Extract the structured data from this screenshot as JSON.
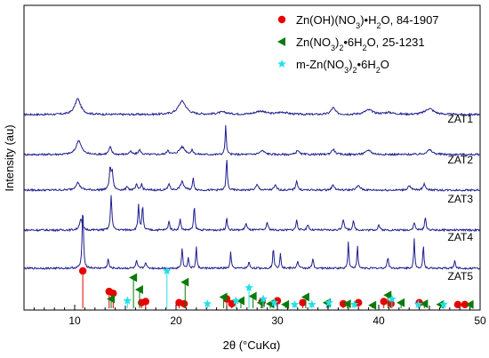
{
  "chart_data": {
    "type": "line",
    "xlabel": "2θ (°CuKα)",
    "ylabel": "Intensity (au)",
    "xlim": [
      5,
      50
    ],
    "xticks": [
      10,
      20,
      30,
      40,
      50
    ],
    "legend_position": "top-right",
    "line_color": "#1f1f8f",
    "series": [
      {
        "name": "ZAT1",
        "baseline": 0.0,
        "peaks": [
          [
            10.3,
            0.42,
            0.35
          ],
          [
            20.6,
            0.36,
            0.45
          ],
          [
            24.6,
            0.06,
            0.6
          ],
          [
            28.3,
            0.09,
            0.6
          ],
          [
            30.5,
            0.06,
            0.6
          ],
          [
            35.5,
            0.18,
            0.25
          ],
          [
            39.0,
            0.12,
            0.5
          ],
          [
            45.0,
            0.16,
            0.5
          ],
          [
            41.0,
            0.05,
            0.6
          ]
        ]
      },
      {
        "name": "ZAT2",
        "baseline": 0.0,
        "peaks": [
          [
            10.4,
            0.38,
            0.3
          ],
          [
            13.5,
            0.2,
            0.15
          ],
          [
            15.5,
            0.08,
            0.15
          ],
          [
            16.4,
            0.12,
            0.15
          ],
          [
            19.2,
            0.12,
            0.12
          ],
          [
            20.6,
            0.2,
            0.35
          ],
          [
            21.6,
            0.1,
            0.12
          ],
          [
            24.9,
            0.78,
            0.07
          ],
          [
            28.5,
            0.1,
            0.3
          ],
          [
            32.0,
            0.12,
            0.15
          ],
          [
            35.5,
            0.14,
            0.2
          ],
          [
            39.0,
            0.12,
            0.3
          ],
          [
            45.0,
            0.12,
            0.35
          ]
        ]
      },
      {
        "name": "ZAT3",
        "baseline": 0.0,
        "peaks": [
          [
            10.3,
            0.2,
            0.25
          ],
          [
            13.5,
            0.55,
            0.1
          ],
          [
            13.7,
            0.45,
            0.1
          ],
          [
            15.2,
            0.1,
            0.1
          ],
          [
            16.1,
            0.14,
            0.1
          ],
          [
            16.6,
            0.16,
            0.1
          ],
          [
            19.3,
            0.18,
            0.1
          ],
          [
            20.6,
            0.22,
            0.2
          ],
          [
            21.7,
            0.32,
            0.08
          ],
          [
            25.0,
            0.85,
            0.07
          ],
          [
            28.0,
            0.14,
            0.15
          ],
          [
            29.8,
            0.12,
            0.15
          ],
          [
            31.9,
            0.26,
            0.1
          ],
          [
            35.5,
            0.14,
            0.15
          ],
          [
            38.0,
            0.12,
            0.2
          ],
          [
            43.0,
            0.12,
            0.15
          ],
          [
            44.5,
            0.16,
            0.15
          ]
        ]
      },
      {
        "name": "ZAT4",
        "baseline": 0.0,
        "peaks": [
          [
            10.6,
            0.3,
            0.15
          ],
          [
            13.6,
            0.95,
            0.08
          ],
          [
            16.3,
            0.7,
            0.07
          ],
          [
            16.7,
            0.65,
            0.07
          ],
          [
            19.3,
            0.25,
            0.08
          ],
          [
            20.4,
            0.3,
            0.08
          ],
          [
            21.8,
            0.65,
            0.07
          ],
          [
            25.0,
            0.35,
            0.07
          ],
          [
            26.9,
            0.18,
            0.1
          ],
          [
            29.0,
            0.2,
            0.1
          ],
          [
            31.9,
            0.28,
            0.08
          ],
          [
            33.0,
            0.15,
            0.1
          ],
          [
            36.5,
            0.3,
            0.1
          ],
          [
            37.5,
            0.22,
            0.1
          ],
          [
            40.0,
            0.14,
            0.1
          ],
          [
            43.5,
            0.2,
            0.1
          ],
          [
            44.6,
            0.35,
            0.08
          ]
        ]
      },
      {
        "name": "ZAT5",
        "baseline": 0.0,
        "peaks": [
          [
            10.8,
            1.6,
            0.08
          ],
          [
            13.3,
            0.25,
            0.08
          ],
          [
            16.1,
            0.2,
            0.08
          ],
          [
            17.0,
            0.18,
            0.08
          ],
          [
            20.6,
            0.55,
            0.07
          ],
          [
            21.2,
            0.3,
            0.07
          ],
          [
            22.0,
            0.6,
            0.06
          ],
          [
            25.4,
            0.45,
            0.06
          ],
          [
            27.2,
            0.15,
            0.1
          ],
          [
            29.6,
            0.55,
            0.07
          ],
          [
            30.3,
            0.4,
            0.07
          ],
          [
            32.0,
            0.2,
            0.08
          ],
          [
            33.5,
            0.25,
            0.08
          ],
          [
            37.0,
            0.75,
            0.06
          ],
          [
            37.9,
            0.6,
            0.06
          ],
          [
            40.9,
            0.3,
            0.08
          ],
          [
            43.5,
            0.78,
            0.06
          ],
          [
            44.4,
            0.65,
            0.06
          ],
          [
            47.5,
            0.2,
            0.08
          ]
        ]
      }
    ],
    "reference_patterns": [
      {
        "name": "Zn(OH)(NO3)•H2O, 84-1907",
        "label_parts": [
          "Zn(OH)(NO",
          "3",
          ")•H",
          "2",
          "O, 84-1907"
        ],
        "color": "#e60000",
        "marker": "circle",
        "peaks": [
          [
            10.8,
            1.0
          ],
          [
            13.4,
            0.45
          ],
          [
            13.8,
            0.4
          ],
          [
            16.6,
            0.15
          ],
          [
            17.0,
            0.18
          ],
          [
            20.3,
            0.15
          ],
          [
            20.8,
            0.12
          ],
          [
            25.0,
            0.25
          ],
          [
            25.5,
            0.12
          ],
          [
            28.5,
            0.18
          ],
          [
            30.0,
            0.2
          ],
          [
            32.5,
            0.15
          ],
          [
            36.5,
            0.12
          ],
          [
            38.0,
            0.15
          ],
          [
            40.5,
            0.18
          ],
          [
            41.2,
            0.12
          ],
          [
            44.0,
            0.15
          ],
          [
            47.8,
            0.1
          ],
          [
            48.5,
            0.1
          ]
        ]
      },
      {
        "name": "Zn(NO3)2•6H2O, 25-1231",
        "label_parts": [
          "Zn(NO",
          "3",
          ")",
          "2",
          "•6H",
          "2",
          "O, 25-1231"
        ],
        "color": "#0a7a0a",
        "marker": "triangle-left",
        "peaks": [
          [
            13.6,
            0.25
          ],
          [
            15.8,
            0.82
          ],
          [
            16.4,
            0.5
          ],
          [
            20.9,
            0.7
          ],
          [
            24.7,
            0.3
          ],
          [
            26.4,
            0.2
          ],
          [
            27.6,
            0.32
          ],
          [
            28.4,
            0.15
          ],
          [
            29.3,
            0.12
          ],
          [
            30.8,
            0.1
          ],
          [
            32.8,
            0.3
          ],
          [
            34.9,
            0.15
          ],
          [
            36.9,
            0.12
          ],
          [
            39.4,
            0.08
          ],
          [
            40.9,
            0.35
          ],
          [
            42.2,
            0.15
          ],
          [
            44.5,
            0.12
          ],
          [
            46.1,
            0.1
          ],
          [
            49.0,
            0.1
          ]
        ]
      },
      {
        "name": "m-Zn(NO3)2•6H2O",
        "label_parts": [
          "m-Zn(NO",
          "3",
          ")",
          "2",
          "•6H",
          "2",
          "O"
        ],
        "color": "#22e0e8",
        "marker": "star",
        "peaks": [
          [
            15.2,
            0.2
          ],
          [
            19.1,
            1.0
          ],
          [
            23.1,
            0.12
          ],
          [
            25.9,
            0.2
          ],
          [
            27.2,
            0.55
          ],
          [
            28.6,
            0.25
          ],
          [
            29.7,
            0.15
          ],
          [
            31.7,
            0.1
          ],
          [
            33.4,
            0.1
          ],
          [
            35.1,
            0.15
          ],
          [
            37.6,
            0.1
          ],
          [
            41.3,
            0.25
          ],
          [
            43.9,
            0.1
          ],
          [
            46.4,
            0.1
          ]
        ]
      }
    ]
  }
}
